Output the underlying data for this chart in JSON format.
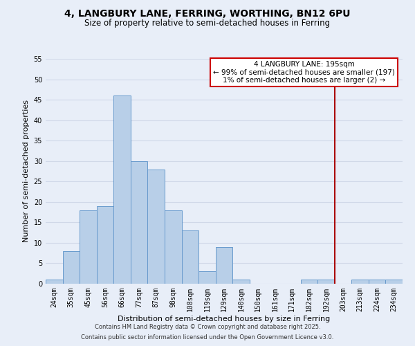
{
  "title": "4, LANGBURY LANE, FERRING, WORTHING, BN12 6PU",
  "subtitle": "Size of property relative to semi-detached houses in Ferring",
  "xlabel": "Distribution of semi-detached houses by size in Ferring",
  "ylabel": "Number of semi-detached properties",
  "bin_labels": [
    "24sqm",
    "35sqm",
    "45sqm",
    "56sqm",
    "66sqm",
    "77sqm",
    "87sqm",
    "98sqm",
    "108sqm",
    "119sqm",
    "129sqm",
    "140sqm",
    "150sqm",
    "161sqm",
    "171sqm",
    "182sqm",
    "192sqm",
    "203sqm",
    "213sqm",
    "224sqm",
    "234sqm"
  ],
  "bar_heights": [
    1,
    8,
    18,
    19,
    46,
    30,
    28,
    18,
    13,
    3,
    9,
    1,
    0,
    0,
    0,
    1,
    1,
    0,
    1,
    1,
    1
  ],
  "bar_color": "#b8cfe8",
  "bar_edge_color": "#6699cc",
  "vline_x": 16.5,
  "vline_color": "#aa0000",
  "ylim": [
    0,
    55
  ],
  "yticks": [
    0,
    5,
    10,
    15,
    20,
    25,
    30,
    35,
    40,
    45,
    50,
    55
  ],
  "annotation_title": "4 LANGBURY LANE: 195sqm",
  "annotation_line1": "← 99% of semi-detached houses are smaller (197)",
  "annotation_line2": "1% of semi-detached houses are larger (2) →",
  "annotation_box_color": "#ffffff",
  "annotation_border_color": "#cc0000",
  "footer1": "Contains HM Land Registry data © Crown copyright and database right 2025.",
  "footer2": "Contains public sector information licensed under the Open Government Licence v3.0.",
  "bg_color": "#e8eef8",
  "grid_color": "#d0d8e8",
  "title_fontsize": 10,
  "subtitle_fontsize": 8.5,
  "axis_label_fontsize": 8,
  "tick_fontsize": 7,
  "footer_fontsize": 6
}
